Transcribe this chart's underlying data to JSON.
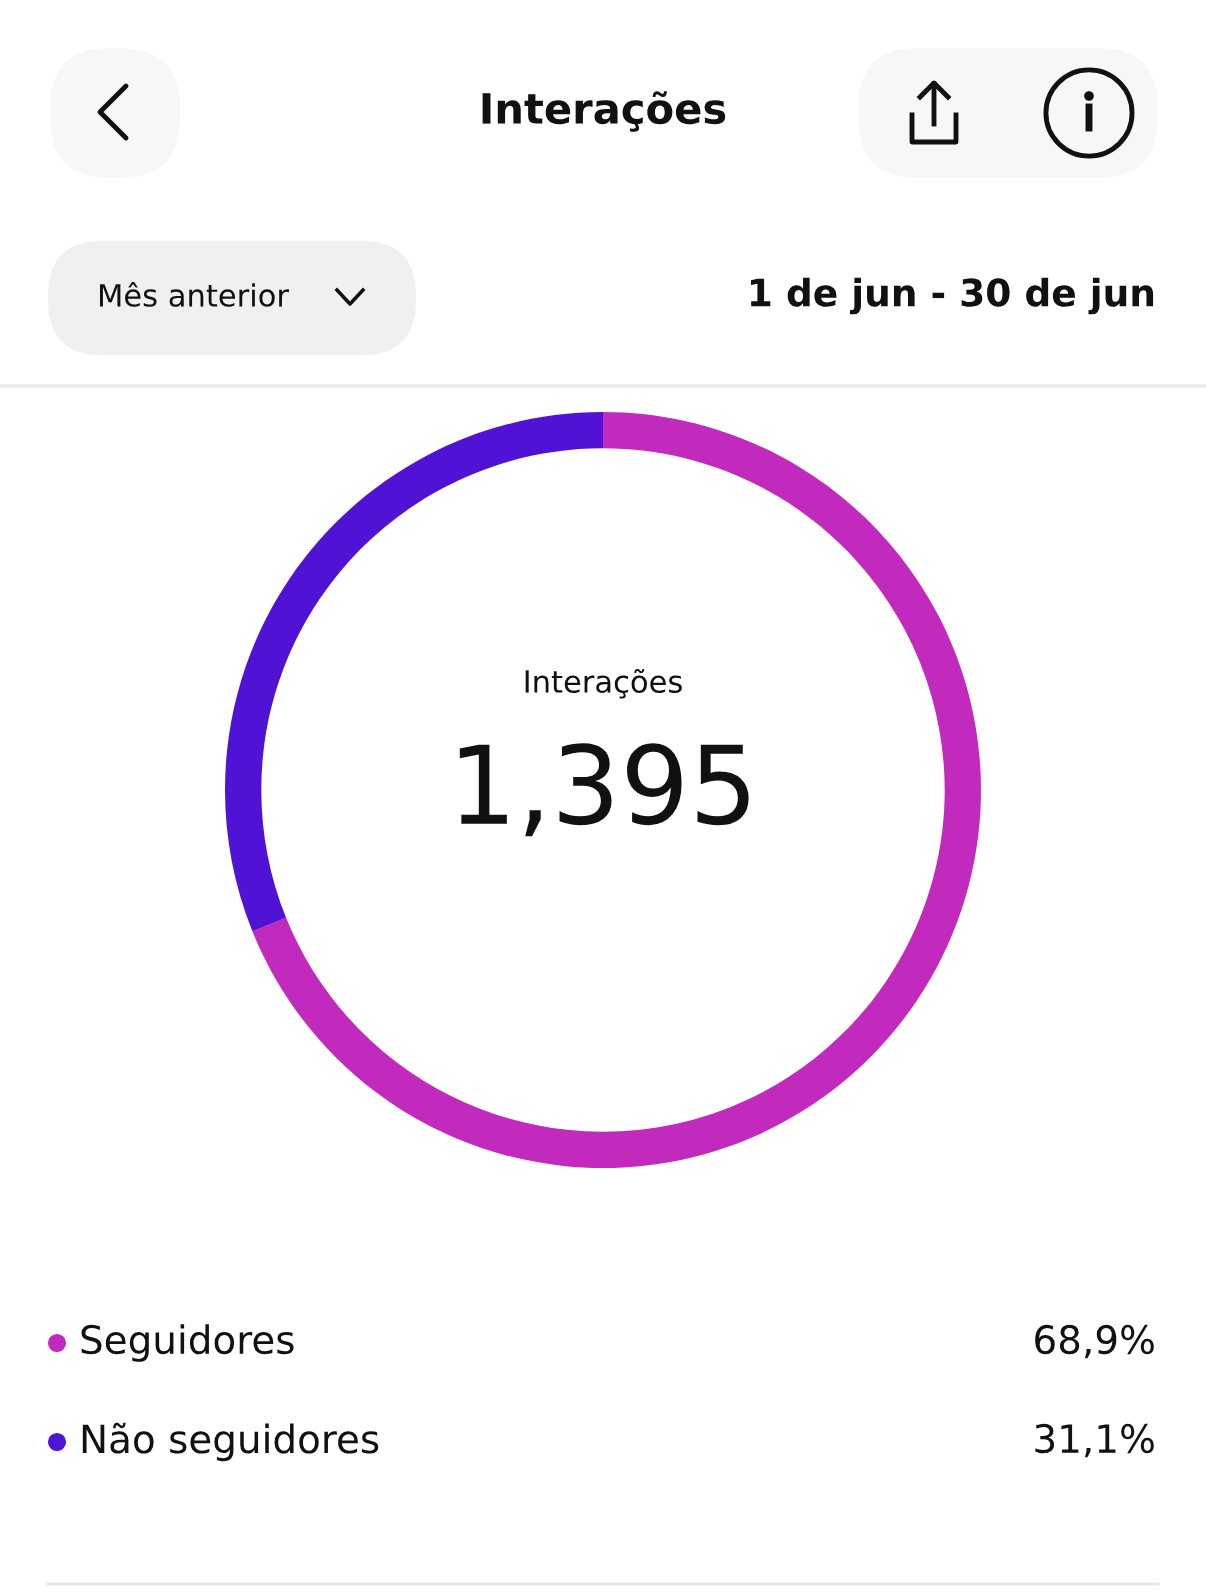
{
  "chart_data": {
    "type": "donut",
    "title": "Interações",
    "subtitle": "1 de jun - 30 de jun",
    "categories": [
      "Seguidores",
      "Não seguidores"
    ],
    "values": [
      68.9,
      31.1
    ],
    "colors": [
      "#c12abd",
      "#5013d6"
    ],
    "value_labels": [
      "68,9%",
      "31,1%"
    ],
    "legend": "bottom",
    "annotations": [
      "Mês anterior",
      "Interações",
      "1,395"
    ]
  }
}
